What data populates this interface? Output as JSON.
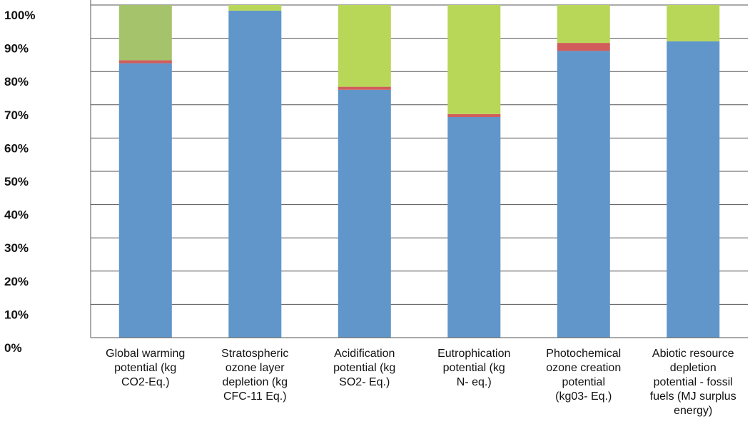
{
  "chart_data": {
    "type": "bar",
    "stacked": true,
    "percent": true,
    "title": "",
    "xlabel": "",
    "ylabel": "",
    "ylim": [
      0,
      100
    ],
    "grid": true,
    "legend": "none",
    "yticks": [
      "0%",
      "10%",
      "20%",
      "30%",
      "40%",
      "50%",
      "60%",
      "70%",
      "80%",
      "90%",
      "100%"
    ],
    "categories": [
      [
        "Global warming",
        "potential (kg",
        "CO2-Eq.)"
      ],
      [
        "Stratospheric",
        "ozone layer",
        "depletion (kg",
        "CFC-11 Eq.)"
      ],
      [
        "Acidification",
        "potential (kg",
        "SO2- Eq.)"
      ],
      [
        "Eutrophication",
        "potential (kg",
        "N- eq.)"
      ],
      [
        "Photochemical",
        "ozone creation",
        "potential",
        "(kg03- Eq.)"
      ],
      [
        "Abiotic resource",
        "depletion",
        "potential - fossil",
        "fuels (MJ surplus",
        "energy)"
      ]
    ],
    "series": [
      {
        "values": [
          82.5,
          98.3,
          74.5,
          66.3,
          86.2,
          89.1
        ]
      },
      {
        "values": [
          0.9,
          0,
          0.9,
          0.9,
          2.4,
          0
        ]
      },
      {
        "values": [
          16.6,
          1.7,
          24.6,
          32.8,
          11.4,
          10.9
        ]
      }
    ],
    "colors": {
      "series": [
        "#6096c9",
        "#d05c5c",
        "#b8d758"
      ],
      "series3_first": "#a5c36b",
      "grid": "#555555",
      "text": "#111111"
    }
  }
}
